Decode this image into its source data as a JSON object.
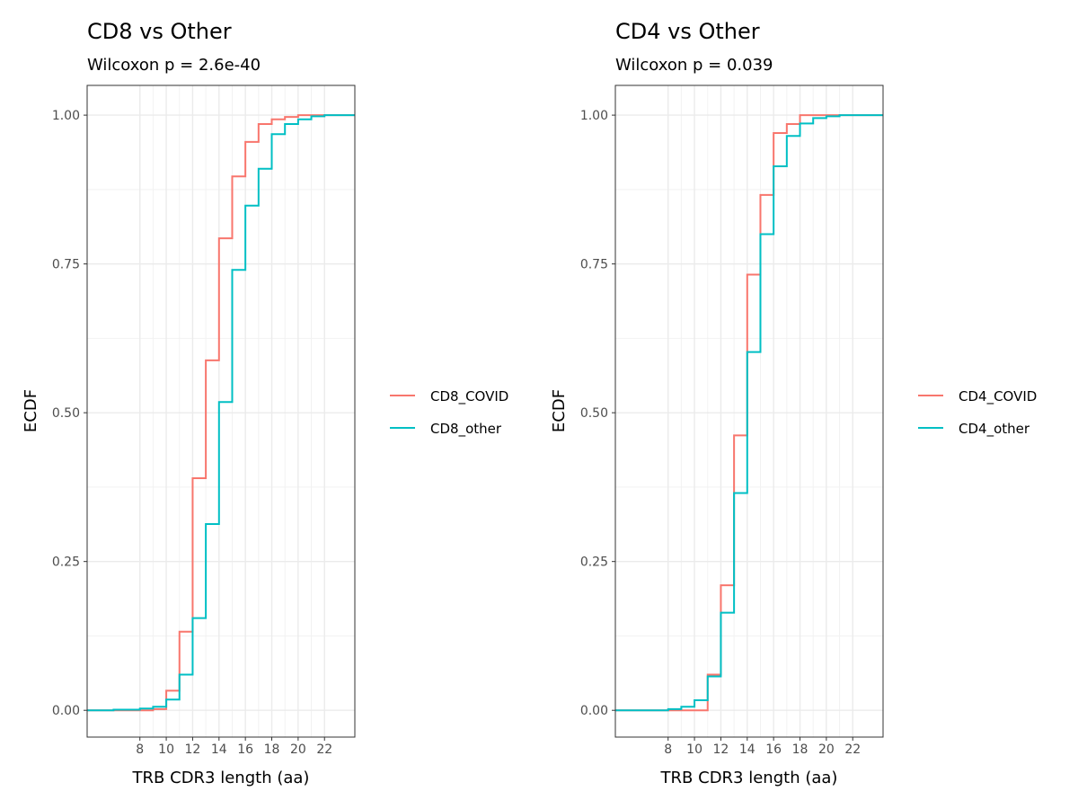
{
  "colors": {
    "covid": "#F8766D",
    "other": "#00BFC4"
  },
  "chart_data": [
    {
      "type": "line",
      "step": true,
      "title": "CD8 vs Other",
      "subtitle": "Wilcoxon p = 2.6e-40",
      "xlabel": "TRB CDR3 length (aa)",
      "ylabel": "ECDF",
      "xlim": [
        4,
        24.3
      ],
      "ylim": [
        -0.045,
        1.05
      ],
      "xticks": [
        8,
        10,
        12,
        14,
        16,
        18,
        20,
        22
      ],
      "yticks": [
        0,
        0.25,
        0.5,
        0.75,
        1
      ],
      "ytick_labels": [
        "0.00",
        "0.25",
        "0.50",
        "0.75",
        "1.00"
      ],
      "grid": true,
      "legend": "right",
      "series": [
        {
          "name": "CD8_COVID",
          "color_key": "covid",
          "x": [
            4,
            8,
            9,
            10,
            11,
            12,
            13,
            14,
            15,
            16,
            17,
            18,
            19,
            20,
            21,
            22,
            24.3
          ],
          "y": [
            0,
            0,
            0.002,
            0.033,
            0.132,
            0.39,
            0.588,
            0.793,
            0.897,
            0.955,
            0.985,
            0.993,
            0.997,
            1,
            1,
            1,
            1
          ]
        },
        {
          "name": "CD8_other",
          "color_key": "other",
          "x": [
            4,
            6,
            8,
            9,
            10,
            11,
            12,
            13,
            14,
            15,
            16,
            17,
            18,
            19,
            20,
            21,
            22,
            24.3
          ],
          "y": [
            0,
            0.001,
            0.003,
            0.006,
            0.018,
            0.06,
            0.155,
            0.313,
            0.518,
            0.74,
            0.848,
            0.91,
            0.968,
            0.985,
            0.993,
            0.998,
            1,
            1
          ]
        }
      ]
    },
    {
      "type": "line",
      "step": true,
      "title": "CD4 vs Other",
      "subtitle": "Wilcoxon p = 0.039",
      "xlabel": "TRB CDR3 length (aa)",
      "ylabel": "ECDF",
      "xlim": [
        4,
        24.3
      ],
      "ylim": [
        -0.045,
        1.05
      ],
      "xticks": [
        8,
        10,
        12,
        14,
        16,
        18,
        20,
        22
      ],
      "yticks": [
        0,
        0.25,
        0.5,
        0.75,
        1
      ],
      "ytick_labels": [
        "0.00",
        "0.25",
        "0.50",
        "0.75",
        "1.00"
      ],
      "grid": true,
      "legend": "right",
      "series": [
        {
          "name": "CD4_COVID",
          "color_key": "covid",
          "x": [
            4,
            11,
            12,
            13,
            14,
            15,
            16,
            17,
            18,
            19,
            20,
            21,
            24.3
          ],
          "y": [
            0,
            0.06,
            0.21,
            0.462,
            0.732,
            0.866,
            0.97,
            0.985,
            1,
            1,
            1,
            1,
            1
          ]
        },
        {
          "name": "CD4_other",
          "color_key": "other",
          "x": [
            4,
            8,
            9,
            10,
            11,
            12,
            13,
            14,
            15,
            16,
            17,
            18,
            19,
            20,
            21,
            24.3
          ],
          "y": [
            0,
            0.002,
            0.006,
            0.017,
            0.057,
            0.164,
            0.365,
            0.602,
            0.8,
            0.914,
            0.965,
            0.986,
            0.995,
            0.998,
            1,
            1
          ]
        }
      ]
    }
  ]
}
